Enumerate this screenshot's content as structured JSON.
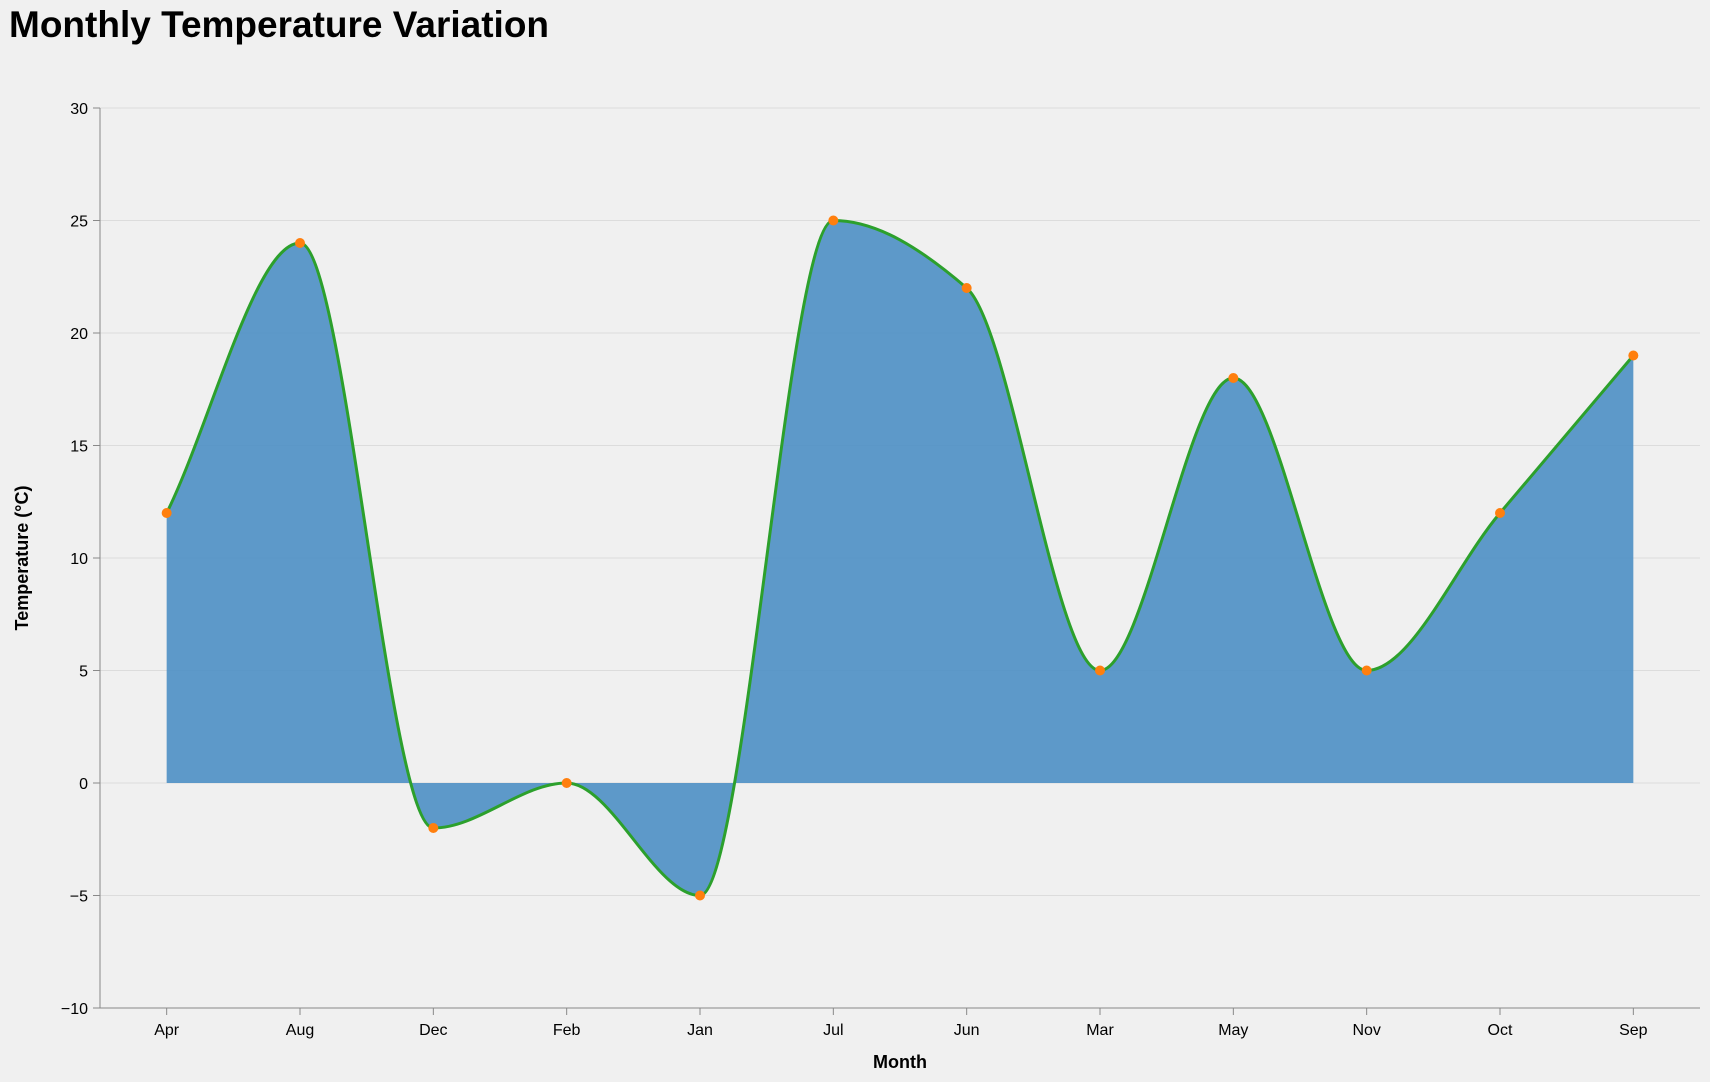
{
  "chart_data": {
    "type": "area",
    "title": "Monthly Temperature Variation",
    "xlabel": "Month",
    "ylabel": "Temperature (°C)",
    "categories": [
      "Apr",
      "Aug",
      "Dec",
      "Feb",
      "Jan",
      "Jul",
      "Jun",
      "Mar",
      "May",
      "Nov",
      "Oct",
      "Sep"
    ],
    "values": [
      12,
      24,
      -2,
      0,
      -5,
      25,
      22,
      5,
      18,
      5,
      12,
      19
    ],
    "ylim": [
      -10,
      30
    ],
    "yticks": [
      -10,
      -5,
      0,
      5,
      10,
      15,
      20,
      25,
      30
    ],
    "grid": true,
    "colors": {
      "area_fill": "#4c8fc4",
      "line": "#2ca02c",
      "points": "#ff7f0e",
      "grid": "#dcdcdc",
      "axis": "#888888",
      "background": "#f0f0f0"
    }
  }
}
